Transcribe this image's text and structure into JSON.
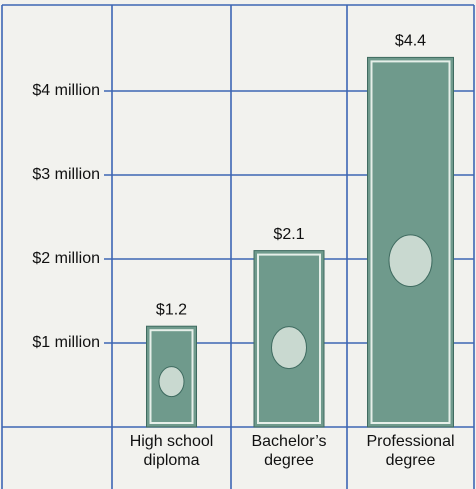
{
  "chart_data": {
    "type": "bar",
    "categories": [
      "High school diploma",
      "Bachelor’s degree",
      "Professional degree"
    ],
    "values": [
      1.2,
      2.1,
      4.4
    ],
    "value_labels": [
      "$1.2",
      "$2.1",
      "$4.4"
    ],
    "color": "#6f9a8c",
    "ylim": [
      0,
      5
    ],
    "yticks": [
      {
        "value": 1,
        "label": "$1 million"
      },
      {
        "value": 2,
        "label": "$2 million"
      },
      {
        "value": 3,
        "label": "$3 million"
      },
      {
        "value": 4,
        "label": "$4 million"
      }
    ],
    "grid": true
  }
}
